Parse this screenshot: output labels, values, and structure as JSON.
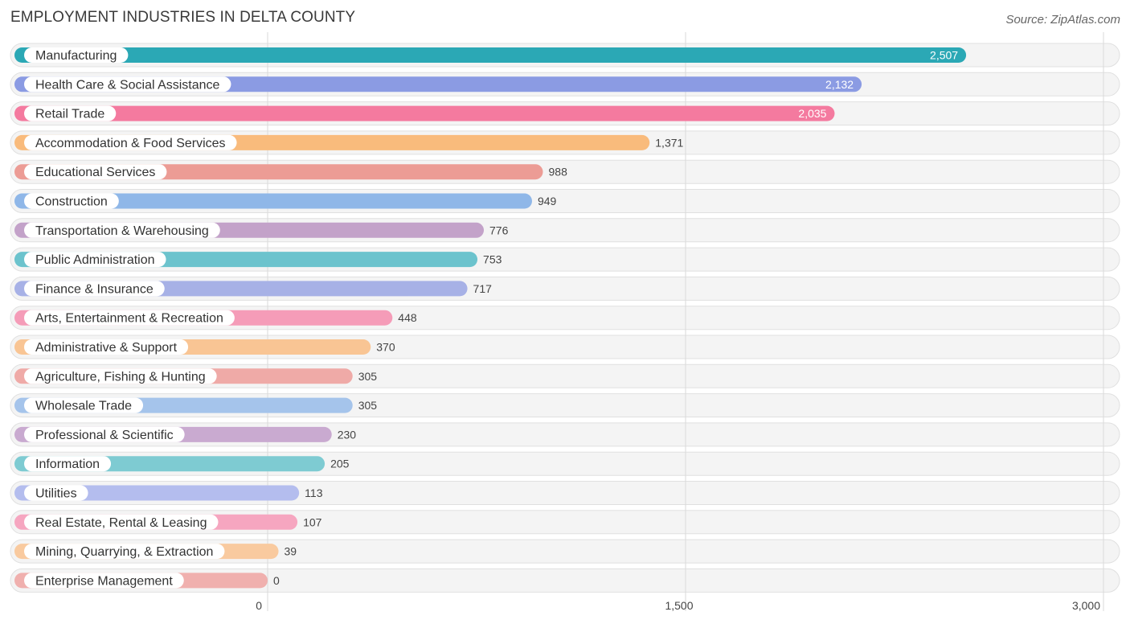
{
  "header": {
    "title": "EMPLOYMENT INDUSTRIES IN DELTA COUNTY",
    "source": "Source: ZipAtlas.com"
  },
  "chart_data": {
    "type": "bar",
    "orientation": "horizontal",
    "title": "EMPLOYMENT INDUSTRIES IN DELTA COUNTY",
    "xlim": [
      0,
      3000
    ],
    "ticks": [
      0,
      1500,
      3000
    ],
    "tick_labels": [
      "0",
      "1,500",
      "3,000"
    ],
    "categories": [
      "Manufacturing",
      "Health Care & Social Assistance",
      "Retail Trade",
      "Accommodation & Food Services",
      "Educational Services",
      "Construction",
      "Transportation & Warehousing",
      "Public Administration",
      "Finance & Insurance",
      "Arts, Entertainment & Recreation",
      "Administrative & Support",
      "Agriculture, Fishing & Hunting",
      "Wholesale Trade",
      "Professional & Scientific",
      "Information",
      "Utilities",
      "Real Estate, Rental & Leasing",
      "Mining, Quarrying, & Extraction",
      "Enterprise Management"
    ],
    "values": [
      2507,
      2132,
      2035,
      1371,
      988,
      949,
      776,
      753,
      717,
      448,
      370,
      305,
      305,
      230,
      205,
      113,
      107,
      39,
      0
    ],
    "value_labels": [
      "2,507",
      "2,132",
      "2,035",
      "1,371",
      "988",
      "949",
      "776",
      "753",
      "717",
      "448",
      "370",
      "305",
      "305",
      "230",
      "205",
      "113",
      "107",
      "39",
      "0"
    ],
    "colors": [
      "#2ba8b5",
      "#8b9be3",
      "#f47a9f",
      "#f9bb7c",
      "#ec9c95",
      "#8fb7e8",
      "#c3a2c9",
      "#6cc3cd",
      "#a7b1e6",
      "#f59cb8",
      "#f9c594",
      "#efaaa7",
      "#a5c4eb",
      "#c9aad0",
      "#7ecbd2",
      "#b4bdee",
      "#f6a6c0",
      "#f9ca9f",
      "#f0b0ae"
    ]
  }
}
